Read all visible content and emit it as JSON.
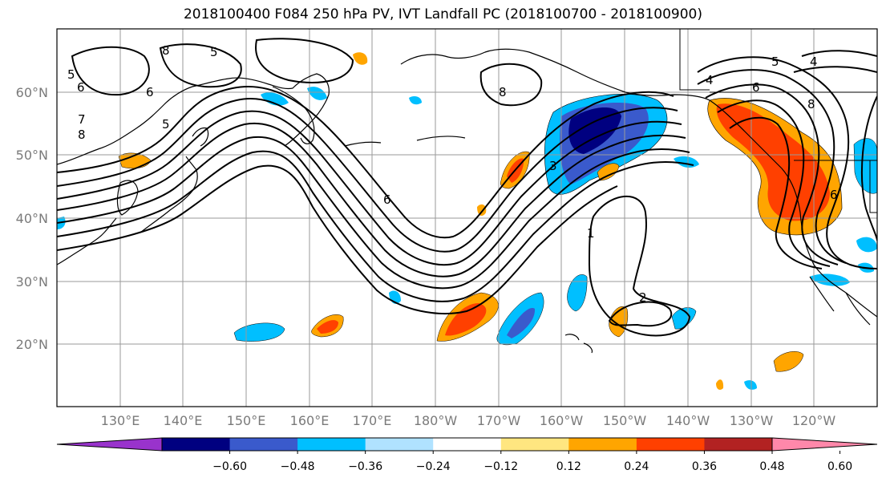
{
  "title": "2018100400 F084 250 hPa PV, IVT Landfall PC (2018100700 - 2018100900)",
  "lat_labels": [
    "60°N",
    "50°N",
    "40°N",
    "30°N",
    "20°N"
  ],
  "lon_labels": [
    "130°E",
    "140°E",
    "150°E",
    "160°E",
    "170°E",
    "180°W",
    "170°W",
    "160°W",
    "150°W",
    "140°W",
    "130°W",
    "120°W"
  ],
  "contour_labels": [
    "5",
    "6",
    "7",
    "8",
    "8",
    "6",
    "5",
    "8",
    "3",
    "6",
    "1",
    "2",
    "5",
    "4",
    "6",
    "8",
    "6",
    "4",
    "5"
  ],
  "colorbar": {
    "tick_labels": [
      "−0.60",
      "−0.48",
      "−0.36",
      "−0.24",
      "−0.12",
      "0.12",
      "0.24",
      "0.36",
      "0.48",
      "0.60"
    ],
    "colors": [
      "#9933cc",
      "#000080",
      "#3a5acc",
      "#00bfff",
      "#b0e2ff",
      "#ffffff",
      "#ffe680",
      "#ffa500",
      "#ff4000",
      "#b22222",
      "#ff88aa"
    ]
  }
}
